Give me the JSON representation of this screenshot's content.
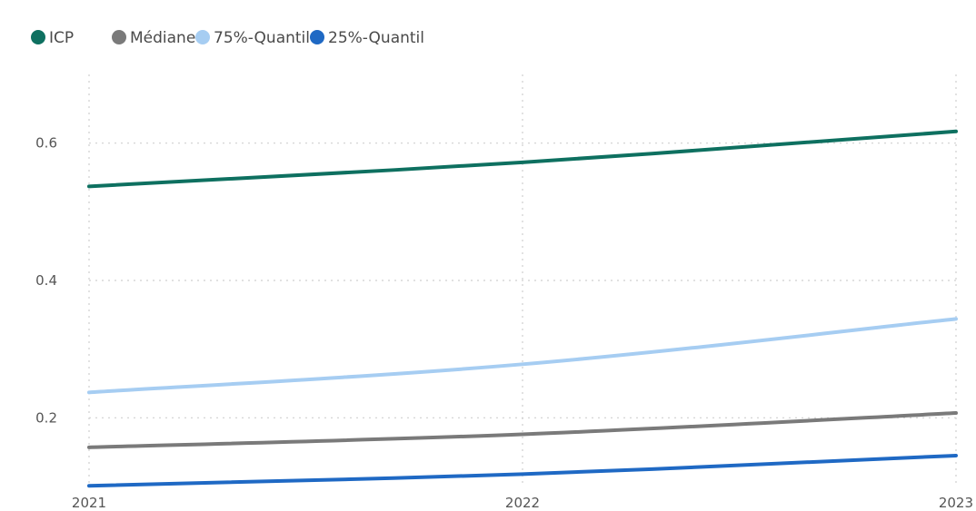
{
  "chart_data": {
    "type": "line",
    "title": "",
    "xlabel": "",
    "ylabel": "",
    "x": [
      "2021",
      "2022",
      "2023"
    ],
    "y_ticks": [
      "0.2",
      "0.4",
      "0.6"
    ],
    "ylim": [
      0.1,
      0.7
    ],
    "grid": true,
    "legend_position": "top-left",
    "series": [
      {
        "name": "ICP",
        "color": "#0E7060",
        "values": [
          0.537,
          0.572,
          0.617
        ]
      },
      {
        "name": "Médiane",
        "color": "#7A7A7A",
        "values": [
          0.157,
          0.176,
          0.207
        ]
      },
      {
        "name": "75%-Quantil",
        "color": "#A6CDF2",
        "values": [
          0.237,
          0.278,
          0.344
        ]
      },
      {
        "name": "25%-Quantil",
        "color": "#1F69C4",
        "values": [
          0.101,
          0.118,
          0.145
        ]
      }
    ]
  }
}
